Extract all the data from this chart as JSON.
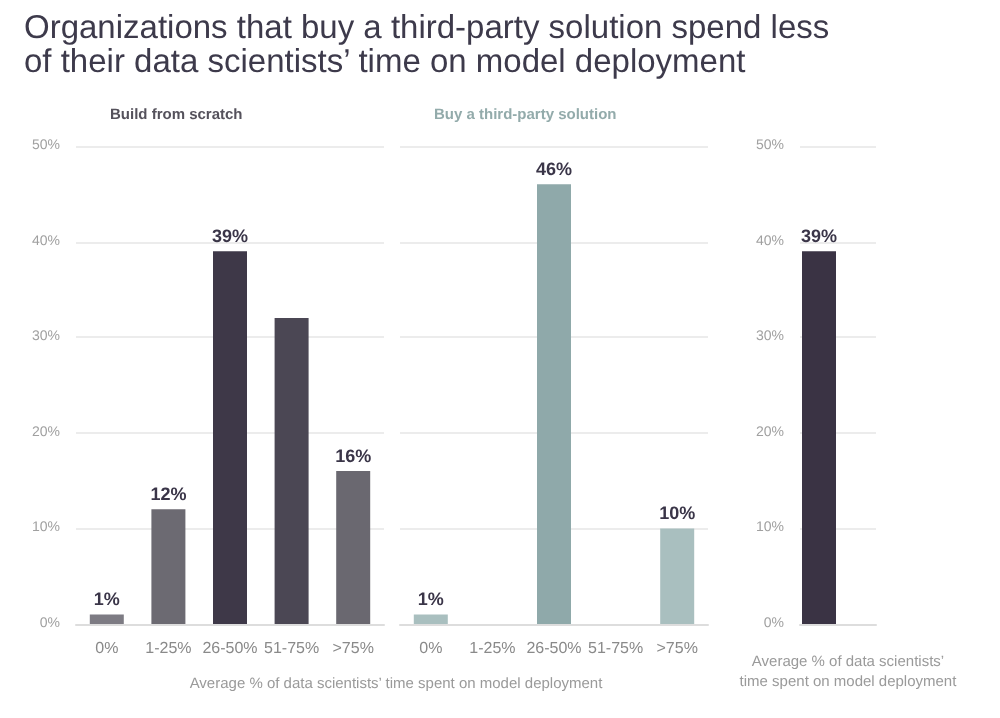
{
  "chart_data": [
    {
      "type": "bar",
      "title": "Organizations that buy a third-party solution spend less of their data scientists’ time on model deployment",
      "subtitle": "Build from scratch",
      "xlabel": "Average % of data scientists’ time spent on model deployment",
      "categories": [
        "0%",
        "1-25%",
        "26-50%",
        "51-75%",
        ">75%"
      ],
      "values": [
        1,
        12,
        39,
        32,
        16
      ],
      "value_labels": [
        "1%",
        "12%",
        "39%",
        null,
        "16%"
      ],
      "colors": [
        "#7d7b83",
        "#6c6a72",
        "#3e3848",
        "#4b4754",
        "#6a6870"
      ],
      "ylim": [
        0,
        50
      ],
      "yticks": [
        {
          "value": 0,
          "label": "0%"
        },
        {
          "value": 10,
          "label": "10%"
        },
        {
          "value": 20,
          "label": "20%"
        },
        {
          "value": 30,
          "label": "30%"
        },
        {
          "value": 40,
          "label": "40%"
        },
        {
          "value": 50,
          "label": "50%"
        }
      ],
      "grid": "y"
    },
    {
      "type": "bar",
      "subtitle": "Buy a third-party solution",
      "categories": [
        "0%",
        "1-25%",
        "26-50%",
        "51-75%",
        ">75%"
      ],
      "values": [
        1,
        null,
        46,
        null,
        10
      ],
      "value_labels": [
        "1%",
        null,
        "46%",
        null,
        "10%"
      ],
      "colors": [
        "#a9bfbf",
        "#98b0b1",
        "#8fa9aa",
        "#9db4b5",
        "#a9bfbf"
      ],
      "ylim": [
        0,
        50
      ],
      "yticks": [
        0,
        10,
        20,
        30,
        40,
        50
      ],
      "grid": "y",
      "tick_labels": "x"
    },
    {
      "type": "bar",
      "xlabel": "Average % of data scientists’\ntime spent on model deployment",
      "categories": [
        null,
        null
      ],
      "values": [
        39,
        null
      ],
      "value_labels": [
        "39%",
        null
      ],
      "colors": [
        "#3a3344",
        "#8fa9aa"
      ],
      "ylim": [
        0,
        50
      ],
      "yticks": [
        {
          "value": 0,
          "label": "0%"
        },
        {
          "value": 10,
          "label": "10%"
        },
        {
          "value": 20,
          "label": "20%"
        },
        {
          "value": 30,
          "label": "30%"
        },
        {
          "value": 40,
          "label": "40%"
        },
        {
          "value": 50,
          "label": "50%"
        }
      ],
      "grid": "y"
    }
  ]
}
